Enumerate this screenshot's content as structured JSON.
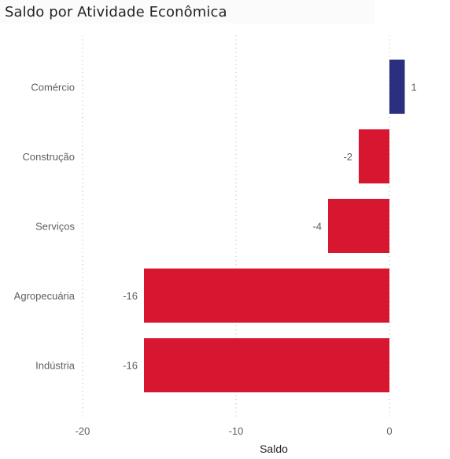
{
  "title": "Saldo por Atividade Econômica",
  "chart_data": {
    "type": "bar",
    "orientation": "horizontal",
    "title": "Saldo por Atividade Econômica",
    "xlabel": "Saldo",
    "ylabel": "",
    "categories": [
      "Comércio",
      "Construção",
      "Serviços",
      "Agropecuária",
      "Indústria"
    ],
    "values": [
      1,
      -2,
      -4,
      -16,
      -16
    ],
    "data_labels": [
      "1",
      "-2",
      "-4",
      "-16",
      "-16"
    ],
    "xlim": [
      -20,
      1
    ],
    "x_ticks": [
      -20,
      -10,
      0
    ],
    "x_tick_labels": [
      "-20",
      "-10",
      "0"
    ],
    "grid": "vertical dotted",
    "colors": {
      "positive": "#2b2f7e",
      "negative": "#d7172f"
    }
  }
}
